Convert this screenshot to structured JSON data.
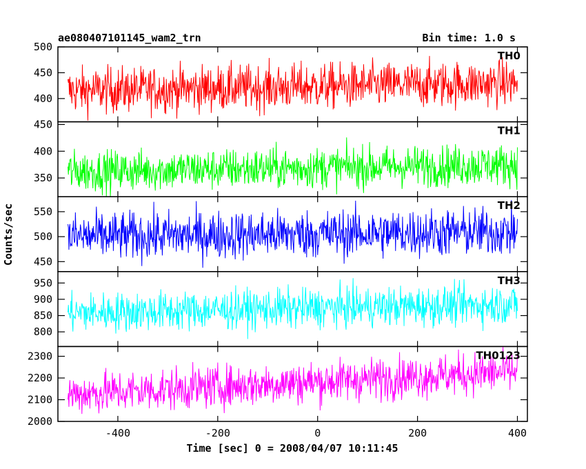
{
  "header": {
    "object_name": "ae080407101145_wam2_trn",
    "bin_time": "Bin time: 1.0 s"
  },
  "chart_data": {
    "type": "line",
    "title": "ae080407101145_wam2_trn",
    "xlabel": "Time [sec] 0 = 2008/04/07 10:11:45",
    "ylabel": "Counts/sec",
    "xlim": [
      -520,
      420
    ],
    "x_ticks": [
      -400,
      -200,
      0,
      200,
      400
    ],
    "x_tick_labels": [
      "-400",
      "-200",
      "0",
      "200",
      "400"
    ],
    "x_range": [
      -500,
      400
    ],
    "bin_time_s": 1.0,
    "panels": [
      {
        "name": "TH0",
        "color": "#ff0000",
        "ylim": [
          355,
          500
        ],
        "y_ticks": [
          400,
          450,
          500
        ],
        "y_tick_labels": [
          "400",
          "450",
          "500"
        ],
        "series_start_mean": 415,
        "series_end_mean": 430,
        "noise_sd": 22
      },
      {
        "name": "TH1",
        "color": "#00ff00",
        "ylim": [
          315,
          455
        ],
        "y_ticks": [
          350,
          400,
          450
        ],
        "y_tick_labels": [
          "350",
          "400",
          "450"
        ],
        "series_start_mean": 362,
        "series_end_mean": 375,
        "noise_sd": 19
      },
      {
        "name": "TH2",
        "color": "#0000ff",
        "ylim": [
          430,
          580
        ],
        "y_ticks": [
          450,
          500,
          550
        ],
        "y_tick_labels": [
          "450",
          "500",
          "550"
        ],
        "series_start_mean": 500,
        "series_end_mean": 510,
        "noise_sd": 24
      },
      {
        "name": "TH3",
        "color": "#00ffff",
        "ylim": [
          755,
          985
        ],
        "y_ticks": [
          800,
          850,
          900,
          950
        ],
        "y_tick_labels": [
          "800",
          "850",
          "900",
          "950"
        ],
        "series_start_mean": 858,
        "series_end_mean": 885,
        "noise_sd": 30
      },
      {
        "name": "TH0123",
        "color": "#ff00ff",
        "ylim": [
          2000,
          2345
        ],
        "y_ticks": [
          2000,
          2100,
          2200,
          2300
        ],
        "y_tick_labels": [
          "2000",
          "2100",
          "2200",
          "2300"
        ],
        "series_start_mean": 2125,
        "series_end_mean": 2230,
        "noise_sd": 48
      }
    ]
  }
}
